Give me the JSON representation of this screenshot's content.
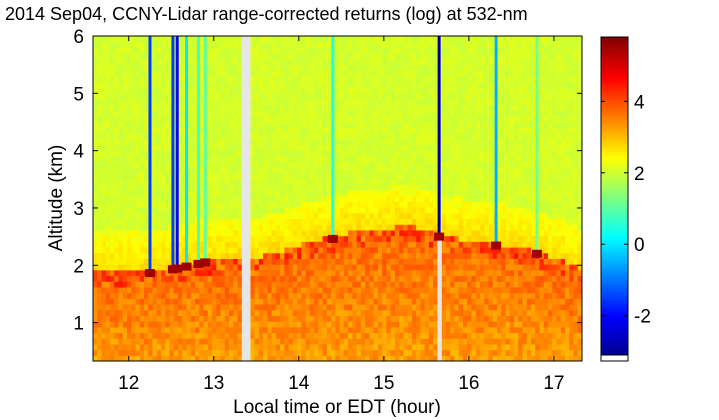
{
  "chart_data": {
    "type": "heatmap",
    "title": "2014 Sep04, CCNY-Lidar range-corrected returns (log) at 532-nm",
    "xlabel": "Local time or EDT (hour)",
    "ylabel": "Altitude (km)",
    "xlim": [
      11.58,
      17.33
    ],
    "ylim": [
      0.33,
      6.0
    ],
    "x_ticks": [
      12,
      13,
      14,
      15,
      16,
      17
    ],
    "y_ticks": [
      1,
      2,
      3,
      4,
      5,
      6
    ],
    "colorbar": {
      "range": [
        -3.1,
        5.8
      ],
      "ticks": [
        -2,
        0,
        2,
        4
      ],
      "colormap": [
        "#00008f",
        "#0000ff",
        "#00ffff",
        "#ffff00",
        "#ff0000",
        "#800000"
      ]
    },
    "data_gaps": [
      {
        "start": 13.33,
        "end": 13.43
      },
      {
        "start": 15.63,
        "end": 15.68
      }
    ],
    "boundary_layer_top": [
      {
        "x": 11.6,
        "y": 1.78
      },
      {
        "x": 12.2,
        "y": 1.8
      },
      {
        "x": 12.6,
        "y": 1.9
      },
      {
        "x": 12.9,
        "y": 2.0
      },
      {
        "x": 13.3,
        "y": 2.05
      },
      {
        "x": 13.45,
        "y": 2.0
      },
      {
        "x": 14.0,
        "y": 2.25
      },
      {
        "x": 14.5,
        "y": 2.45
      },
      {
        "x": 15.0,
        "y": 2.55
      },
      {
        "x": 15.3,
        "y": 2.6
      },
      {
        "x": 15.6,
        "y": 2.5
      },
      {
        "x": 15.7,
        "y": 2.4
      },
      {
        "x": 16.3,
        "y": 2.3
      },
      {
        "x": 16.8,
        "y": 2.15
      },
      {
        "x": 17.33,
        "y": 1.85
      }
    ],
    "cloud_streaks": [
      {
        "x": 12.25,
        "strength": -1.5
      },
      {
        "x": 12.52,
        "strength": -1.5
      },
      {
        "x": 12.57,
        "strength": -2.0
      },
      {
        "x": 12.68,
        "strength": 0.0
      },
      {
        "x": 12.82,
        "strength": 0.8
      },
      {
        "x": 12.9,
        "strength": 1.0
      },
      {
        "x": 14.4,
        "strength": 0.5
      },
      {
        "x": 15.65,
        "strength": -3.0
      },
      {
        "x": 16.32,
        "strength": -0.5
      },
      {
        "x": 16.8,
        "strength": 1.2
      }
    ]
  }
}
